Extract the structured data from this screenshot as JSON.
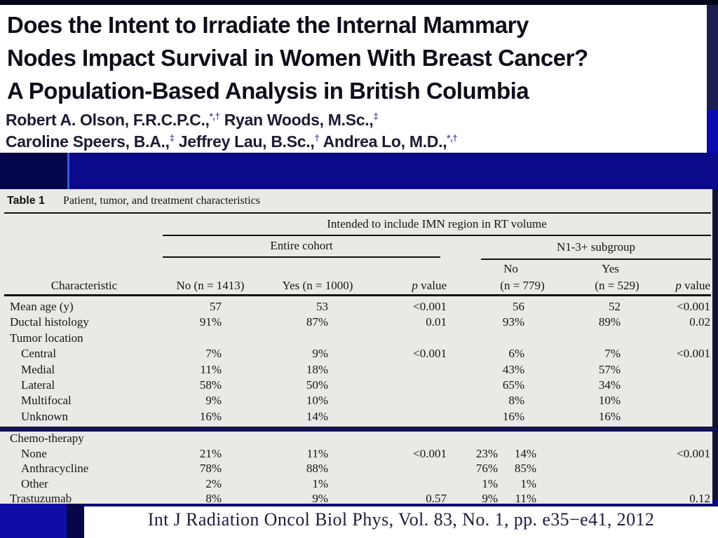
{
  "title": {
    "line1": "Does the Intent to Irradiate the Internal Mammary",
    "line2": "Nodes Impact Survival in Women With Breast Cancer?",
    "line3": "A Population-Based Analysis in British Columbia"
  },
  "authors": {
    "l1s0": "Robert A. Olson, F.R.C.P.C.,",
    "l1sup0": "*,†",
    "l1s1": " Ryan Woods, M.Sc.,",
    "l1sup1": "‡",
    "l2s0": "Caroline Speers, B.A.,",
    "l2sup0": "‡",
    "l2s1": " Jeffrey Lau, B.Sc.,",
    "l2sup1": "†",
    "l2s2": " Andrea Lo, M.D.,",
    "l2sup2": "*,†"
  },
  "table": {
    "caption_label": "Table 1",
    "caption_text": "Patient, tumor, and treatment characteristics",
    "span_header": "Intended to include IMN region in RT volume",
    "group1": "Entire cohort",
    "group2": "N1-3+ subgroup",
    "sub_no": "No",
    "sub_yes": "Yes",
    "col_characteristic": "Characteristic",
    "col_no_n": "No (n = 1413)",
    "col_yes_n": "Yes (n = 1000)",
    "col_p_italic": "p",
    "col_p_word": " value",
    "col_n779": "(n = 779)",
    "col_n529": "(n = 529)",
    "rows": [
      {
        "label": "Mean age (y)",
        "v1": "57",
        "v2": "53",
        "p1": "<0.001",
        "v3": "56",
        "v4": "52",
        "p2": "<0.001"
      },
      {
        "label": "Ductal histology",
        "v1": "91%",
        "v2": "87%",
        "p1": "0.01",
        "v3": "93%",
        "v4": "89%",
        "p2": "0.02"
      },
      {
        "label": "Tumor location",
        "v1": "",
        "v2": "",
        "p1": "",
        "v3": "",
        "v4": "",
        "p2": ""
      },
      {
        "label": "Central",
        "v1": "7%",
        "v2": "9%",
        "p1": "<0.001",
        "v3": "6%",
        "v4": "7%",
        "p2": "<0.001"
      },
      {
        "label": "Medial",
        "v1": "11%",
        "v2": "18%",
        "p1": "",
        "v3": "43%",
        "v4": "57%",
        "p2": ""
      },
      {
        "label": "Lateral",
        "v1": "58%",
        "v2": "50%",
        "p1": "",
        "v3": "65%",
        "v4": "34%",
        "p2": ""
      },
      {
        "label": "Multifocal",
        "v1": "9%",
        "v2": "10%",
        "p1": "",
        "v3": "8%",
        "v4": "10%",
        "p2": ""
      },
      {
        "label": "Unknown",
        "v1": "16%",
        "v2": "14%",
        "p1": "",
        "v3": "16%",
        "v4": "16%",
        "p2": ""
      }
    ],
    "rows2": [
      {
        "label": "Chemo-therapy",
        "v1": "",
        "v2": "",
        "p1": "",
        "n": "",
        "y": "",
        "p2": ""
      },
      {
        "label": "None",
        "v1": "21%",
        "v2": "11%",
        "p1": "<0.001",
        "n": "23%",
        "y": "14%",
        "p2": "<0.001"
      },
      {
        "label": "Anthracycline",
        "v1": "78%",
        "v2": "88%",
        "p1": "",
        "n": "76%",
        "y": "85%",
        "p2": ""
      },
      {
        "label": "Other",
        "v1": "2%",
        "v2": "1%",
        "p1": "",
        "n": "1%",
        "y": "1%",
        "p2": ""
      },
      {
        "label": "Trastuzumab",
        "v1": "8%",
        "v2": "9%",
        "p1": "0.57",
        "n": "9%",
        "y": "11%",
        "p2": "0.12"
      }
    ]
  },
  "citation": "Int J Radiation Oncol Biol Phys, Vol. 83, No. 1, pp. e35−e41, 2012",
  "colors": {
    "slide_background": "#0a0a8a",
    "band_dark_left": "#06064d",
    "accent_vertical_line": "#3a5ada",
    "bottom_band": "#0e0ea6",
    "table_panel_bg": "#e9e9e6",
    "table_rule": "#101010",
    "divider_line": "#15155c",
    "title_text": "#0e0e1a",
    "author_text": "#1b1b33",
    "author_superscript": "#4b4bb0",
    "citation_text": "#1d1d40"
  }
}
